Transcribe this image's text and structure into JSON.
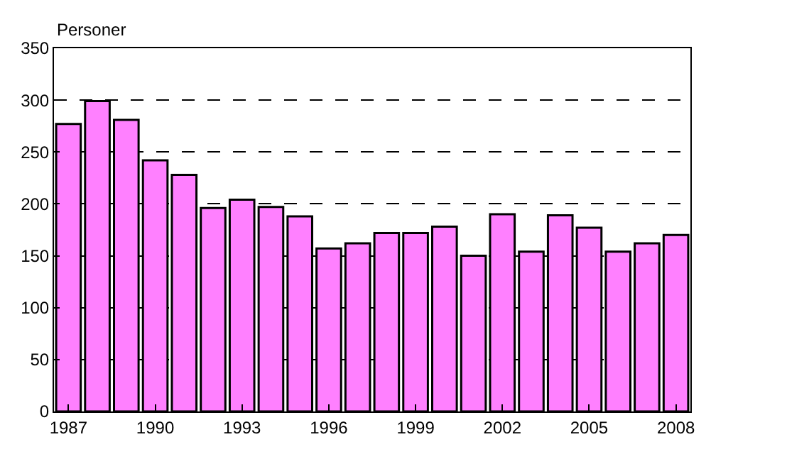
{
  "chart_data": {
    "type": "bar",
    "ylabel": "Personer",
    "categories": [
      "1987",
      null,
      null,
      "1990",
      null,
      null,
      "1993",
      null,
      null,
      "1996",
      null,
      null,
      "1999",
      null,
      null,
      "2002",
      null,
      null,
      "2005",
      null,
      null,
      "2008"
    ],
    "values": [
      277,
      299,
      281,
      242,
      228,
      196,
      204,
      197,
      188,
      157,
      162,
      172,
      172,
      178,
      150,
      190,
      154,
      189,
      177,
      154,
      162,
      170
    ],
    "color": "#ff80ff",
    "ylim": [
      0,
      350
    ],
    "yticks": [
      0,
      50,
      100,
      150,
      200,
      250,
      300,
      350
    ],
    "grid": "y"
  }
}
